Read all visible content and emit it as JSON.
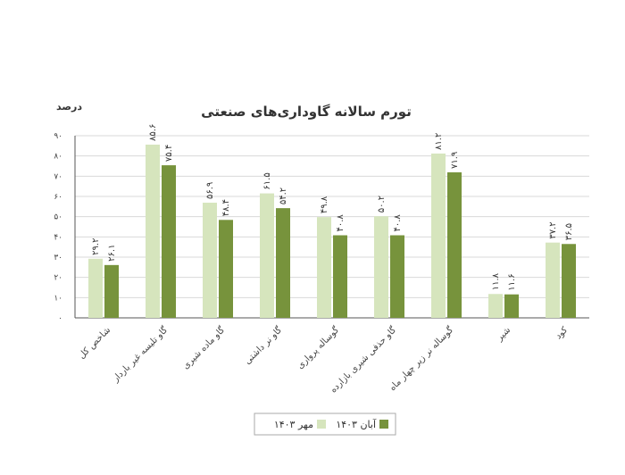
{
  "chart_data": {
    "type": "bar",
    "title": "تورم سالانه گاوداری‌های صنعتی",
    "ylabel": "درصد",
    "ylim": [
      0,
      90
    ],
    "yticks": [
      "۰",
      "۱۰",
      "۲۰",
      "۳۰",
      "۴۰",
      "۵۰",
      "۶۰",
      "۷۰",
      "۸۰",
      "۹۰"
    ],
    "grid": true,
    "legend_position": "bottom",
    "categories": [
      "شاخص کل",
      "گاو تلیسه غیر باردار",
      "گاو ماده شیری",
      "گاو نر داشتی",
      "گوساله پرواری",
      "گاو حذفی شیری بازارده",
      "گوساله نر زیر چهار ماه",
      "شیر",
      "کود"
    ],
    "series": [
      {
        "name": "مهر ۱۴۰۳",
        "color": "#d6e5bd",
        "values": [
          29.2,
          85.6,
          56.9,
          61.5,
          49.8,
          50.2,
          81.2,
          11.8,
          37.2
        ],
        "labels": [
          "۲۹.۲",
          "۸۵.۶",
          "۵۶.۹",
          "۶۱.۵",
          "۴۹.۸",
          "۵۰.۲",
          "۸۱.۲",
          "۱۱.۸",
          "۳۷.۲"
        ]
      },
      {
        "name": "آبان ۱۴۰۳",
        "color": "#77933c",
        "values": [
          26.1,
          75.4,
          48.4,
          54.2,
          40.8,
          40.8,
          71.9,
          11.6,
          36.5
        ],
        "labels": [
          "۲۶.۱",
          "۷۵.۴",
          "۴۸.۴",
          "۵۴.۲",
          "۴۰.۸",
          "۴۰.۸",
          "۷۱.۹",
          "۱۱.۶",
          "۳۶.۵"
        ]
      }
    ]
  }
}
